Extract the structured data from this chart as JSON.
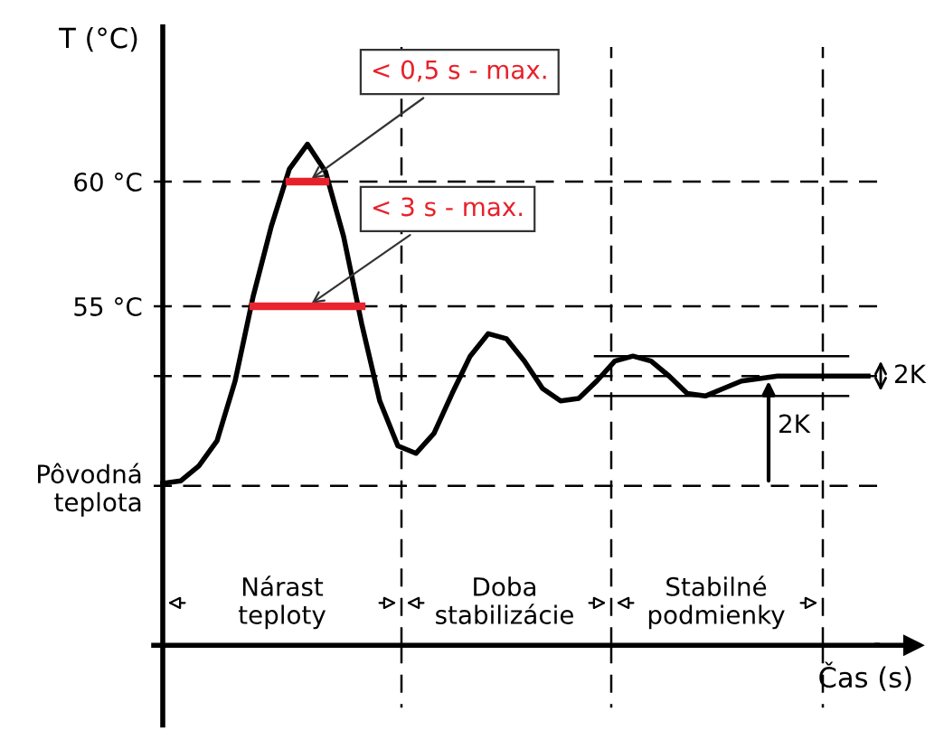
{
  "chart_data": {
    "type": "line",
    "ylabel": "T (°C)",
    "xlabel": "Čas (s)",
    "categories": [
      null,
      null,
      null,
      null,
      null,
      null,
      null,
      null,
      null,
      null,
      null,
      null,
      null,
      null,
      null,
      null,
      null,
      null,
      null,
      null,
      null,
      null,
      null,
      null,
      null,
      null,
      null,
      null,
      null,
      null,
      null,
      null,
      null,
      null,
      null,
      null,
      null,
      null,
      null,
      null
    ],
    "series": [
      {
        "color": "#000000",
        "values": [
          47.9,
          48.0,
          48.6,
          49.6,
          52.0,
          55.4,
          58.2,
          60.5,
          61.5,
          60.4,
          57.8,
          54.3,
          51.2,
          49.4,
          49.1,
          49.9,
          51.5,
          53.0,
          53.9,
          53.7,
          52.8,
          51.7,
          51.2,
          51.3,
          52.0,
          52.8,
          53.0,
          52.8,
          52.2,
          51.5,
          51.4,
          51.7,
          52.0,
          52.1,
          52.2,
          52.2,
          52.2,
          52.2,
          52.2,
          52.2
        ]
      },
      {
        "type": "line",
        "color": "#e8202a",
        "values": [
          null,
          null,
          null,
          null,
          null,
          null,
          null,
          60,
          60,
          60,
          null,
          null,
          null,
          null,
          null,
          null,
          null,
          null,
          null,
          null,
          null,
          null,
          null,
          null,
          null,
          null,
          null,
          null,
          null,
          null,
          null,
          null,
          null,
          null,
          null,
          null,
          null,
          null,
          null,
          null
        ]
      },
      {
        "type": "line",
        "color": "#e82430",
        "values": [
          null,
          null,
          null,
          null,
          null,
          55,
          55,
          55,
          55,
          55,
          55,
          55,
          null,
          null,
          null,
          null,
          null,
          null,
          null,
          null,
          null,
          null,
          null,
          null,
          null,
          null,
          null,
          null,
          null,
          null,
          null,
          null,
          null,
          null,
          null,
          null,
          null,
          null,
          null,
          null
        ]
      }
    ],
    "ylim": [
      41.4,
      66.2
    ],
    "yticks": [
      {
        "value": 47.8,
        "label": "Pôvodná\nteplota"
      },
      {
        "value": 55,
        "label": "55 °C"
      },
      {
        "value": 60,
        "label": "60 °C"
      }
    ],
    "ref_lines": [
      {
        "axis": "y",
        "value": 60,
        "line_style": "dashed",
        "color": "#000000"
      },
      {
        "axis": "y",
        "value": 55,
        "line_style": "dashed",
        "color": "#000000"
      },
      {
        "axis": "y",
        "value": 47.8,
        "line_style": "dashed",
        "color": "#000000"
      },
      {
        "axis": "y",
        "value": 52.2,
        "line_style": "dashed",
        "color": "#000000"
      },
      {
        "axis": "y",
        "value": 53.0,
        "line_style": "solid",
        "color": "#000000"
      },
      {
        "axis": "y",
        "value": 51.4,
        "line_style": "solid",
        "color": "#000000"
      }
    ],
    "annotations": [
      "< 0,5 s - max.",
      "< 3 s - max.",
      "2K",
      "2K",
      "Nárast\nteploty",
      "Doba\nstabilizácie",
      "Stabilné\npodmienky"
    ],
    "grid": false,
    "marker": "none",
    "line_style": "solid"
  }
}
